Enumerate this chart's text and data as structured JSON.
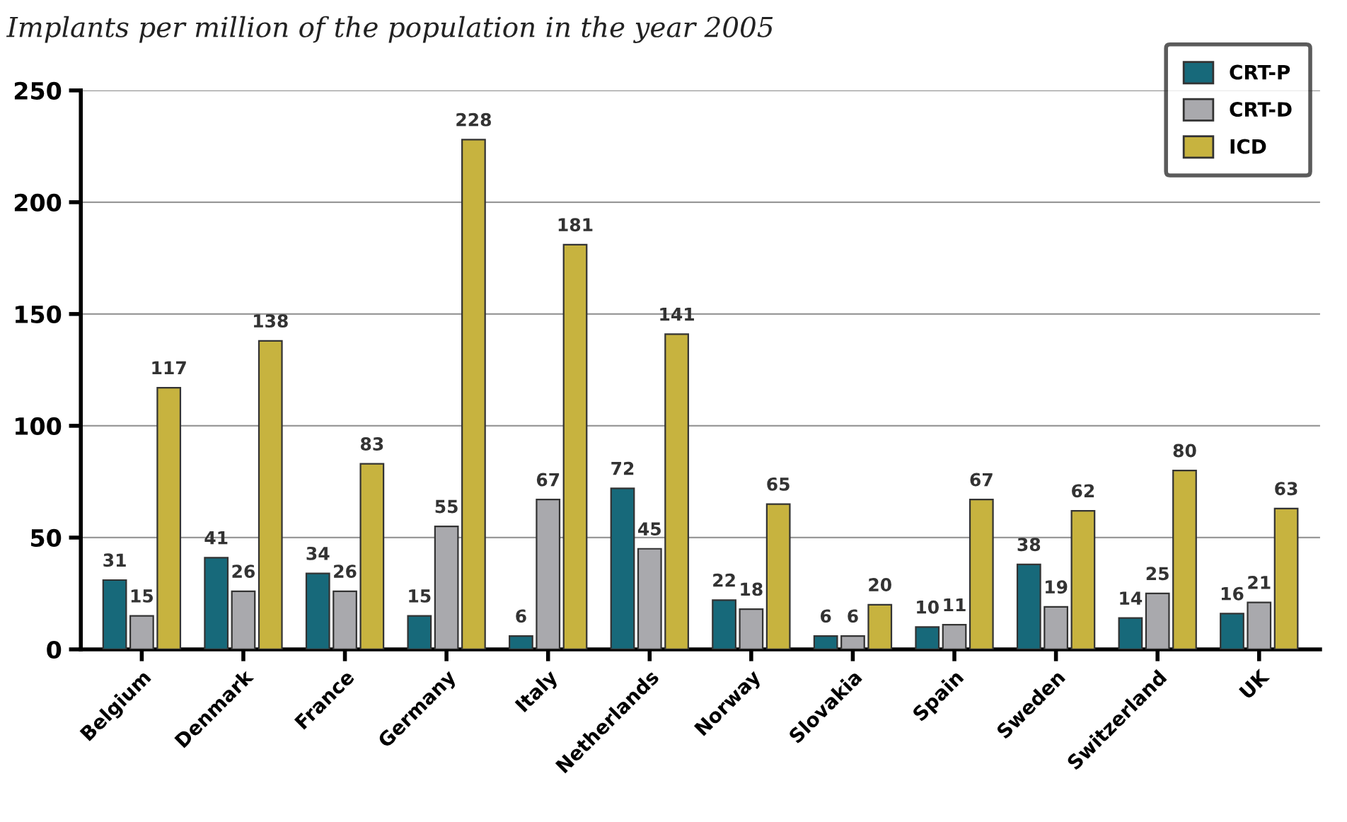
{
  "chart_data": {
    "type": "bar",
    "title": "Implants per million of the population in the year 2005",
    "categories": [
      "Belgium",
      "Denmark",
      "France",
      "Germany",
      "Italy",
      "Netherlands",
      "Norway",
      "Slovakia",
      "Spain",
      "Sweden",
      "Switzerland",
      "UK"
    ],
    "series": [
      {
        "name": "CRT-P",
        "color": "#17697a",
        "values": [
          31,
          41,
          34,
          15,
          6,
          72,
          22,
          6,
          10,
          38,
          14,
          16
        ]
      },
      {
        "name": "CRT-D",
        "color": "#a9a9ad",
        "values": [
          15,
          26,
          26,
          55,
          67,
          45,
          18,
          6,
          11,
          19,
          25,
          21
        ]
      },
      {
        "name": "ICD",
        "color": "#c7b33f",
        "values": [
          117,
          138,
          83,
          228,
          181,
          141,
          65,
          20,
          67,
          62,
          80,
          63
        ]
      }
    ],
    "ylim": [
      0,
      250
    ],
    "yticks": [
      0,
      50,
      100,
      150,
      200,
      250
    ],
    "grid": "y",
    "legend": "top right",
    "data_labels": true
  }
}
